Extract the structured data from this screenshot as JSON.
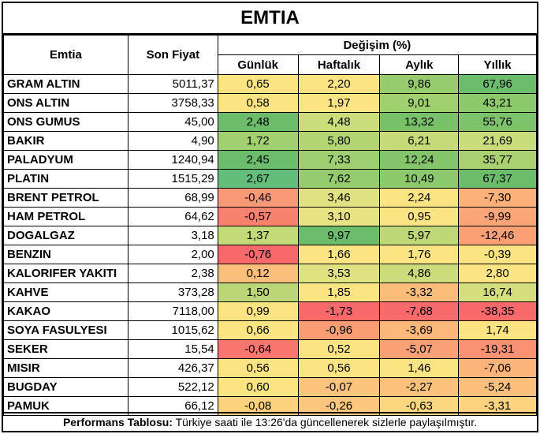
{
  "title": "EMTIA",
  "header": {
    "emtia": "Emtia",
    "son_fiyat": "Son Fiyat",
    "degisim": "Değişim (%)",
    "gunluk": "Günlük",
    "haftalik": "Haftalık",
    "aylik": "Aylık",
    "yillik": "Yıllık"
  },
  "rows": [
    {
      "name": "GRAM ALTIN",
      "price": "5011,37",
      "d": "0,65",
      "w": "2,20",
      "m": "9,86",
      "y": "67,96",
      "colors": [
        "#fde483",
        "#fde483",
        "#97cc6e",
        "#6bbd6b"
      ]
    },
    {
      "name": "ONS ALTIN",
      "price": "3758,33",
      "d": "0,58",
      "w": "1,97",
      "m": "9,01",
      "y": "43,21",
      "colors": [
        "#fde483",
        "#fde483",
        "#a1d070",
        "#8cc86c"
      ]
    },
    {
      "name": "ONS GUMUS",
      "price": "45,00",
      "d": "2,48",
      "w": "4,48",
      "m": "13,32",
      "y": "55,76",
      "colors": [
        "#6bbd6b",
        "#cbdc7b",
        "#79c06b",
        "#7dc36c"
      ]
    },
    {
      "name": "BAKIR",
      "price": "4,90",
      "d": "1,72",
      "w": "5,80",
      "m": "6,21",
      "y": "21,69",
      "colors": [
        "#a3d070",
        "#b4d574",
        "#c6da79",
        "#c9dc7b"
      ]
    },
    {
      "name": "PALADYUM",
      "price": "1240,94",
      "d": "2,45",
      "w": "7,33",
      "m": "12,24",
      "y": "35,77",
      "colors": [
        "#6bbd6b",
        "#9dce6f",
        "#84c56c",
        "#a9d172"
      ]
    },
    {
      "name": "PLATIN",
      "price": "1515,29",
      "d": "2,67",
      "w": "7,62",
      "m": "10,49",
      "y": "67,37",
      "colors": [
        "#63be7b",
        "#94cb6e",
        "#8cc86c",
        "#6bbd6b"
      ]
    },
    {
      "name": "BRENT PETROL",
      "price": "68,99",
      "d": "-0,46",
      "w": "3,46",
      "m": "2,24",
      "y": "-7,30",
      "colors": [
        "#f99a76",
        "#e0e282",
        "#fde483",
        "#fbb179"
      ]
    },
    {
      "name": "HAM PETROL",
      "price": "64,62",
      "d": "-0,57",
      "w": "3,10",
      "m": "0,95",
      "y": "-9,99",
      "colors": [
        "#f7836f",
        "#e8e383",
        "#fde483",
        "#fba678"
      ]
    },
    {
      "name": "DOGALGAZ",
      "price": "3,18",
      "d": "1,37",
      "w": "9,97",
      "m": "5,97",
      "y": "-12,46",
      "colors": [
        "#c3da79",
        "#6bbd6b",
        "#bfd877",
        "#fba075"
      ]
    },
    {
      "name": "BENZIN",
      "price": "2,00",
      "d": "-0,76",
      "w": "1,66",
      "m": "1,76",
      "y": "-0,39",
      "colors": [
        "#f8696b",
        "#fde483",
        "#fde483",
        "#fde483"
      ]
    },
    {
      "name": "KALORIFER YAKITI",
      "price": "2,38",
      "d": "0,12",
      "w": "3,53",
      "m": "4,86",
      "y": "2,80",
      "colors": [
        "#fcbf7b",
        "#e0e282",
        "#cddc7b",
        "#fde483"
      ]
    },
    {
      "name": "KAHVE",
      "price": "373,28",
      "d": "1,50",
      "w": "1,85",
      "m": "-3,32",
      "y": "16,74",
      "colors": [
        "#bbd676",
        "#fde483",
        "#fcbd7b",
        "#d4de7d"
      ]
    },
    {
      "name": "KAKAO",
      "price": "7118,00",
      "d": "0,99",
      "w": "-1,73",
      "m": "-7,68",
      "y": "-38,35",
      "colors": [
        "#fde483",
        "#f8696b",
        "#f8696b",
        "#f8696b"
      ]
    },
    {
      "name": "SOYA FASULYESI",
      "price": "1015,62",
      "d": "0,66",
      "w": "-0,96",
      "m": "-3,69",
      "y": "1,74",
      "colors": [
        "#fde483",
        "#fa9d75",
        "#fcb87a",
        "#fde483"
      ]
    },
    {
      "name": "SEKER",
      "price": "15,54",
      "d": "-0,64",
      "w": "0,52",
      "m": "-5,07",
      "y": "-19,31",
      "colors": [
        "#f8766d",
        "#fde483",
        "#fb9f76",
        "#fa9172"
      ]
    },
    {
      "name": "MISIR",
      "price": "426,37",
      "d": "0,56",
      "w": "0,56",
      "m": "1,46",
      "y": "-7,06",
      "colors": [
        "#fde483",
        "#fde483",
        "#fde483",
        "#fcb47a"
      ]
    },
    {
      "name": "BUGDAY",
      "price": "522,12",
      "d": "0,60",
      "w": "-0,07",
      "m": "-2,27",
      "y": "-5,24",
      "colors": [
        "#fde483",
        "#fcc47c",
        "#fcc27c",
        "#fcc07c"
      ]
    },
    {
      "name": "PAMUK",
      "price": "66,12",
      "d": "-0,08",
      "w": "-0,26",
      "m": "-0,63",
      "y": "-3,31",
      "colors": [
        "#fdd27f",
        "#fcc67d",
        "#fdd680",
        "#fdd380"
      ]
    }
  ],
  "footer": {
    "label": "Performans Tablosu:",
    "text": " Türkiye saati ile 13:26'da güncellenerek sizlerle paylaşılmıştır."
  }
}
